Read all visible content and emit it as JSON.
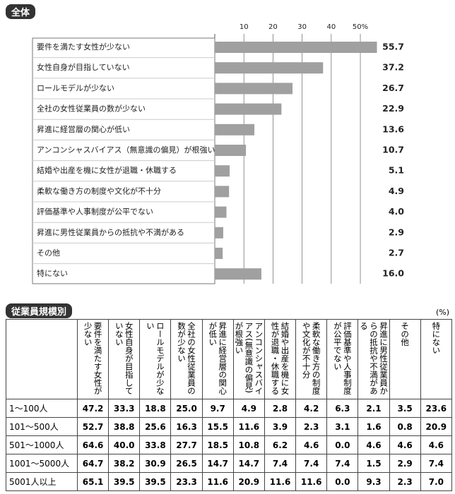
{
  "chart_data": {
    "type": "bar",
    "orientation": "horizontal",
    "title": "全体",
    "categories": [
      "要件を満たす女性が少ない",
      "女性自身が目指していない",
      "ロールモデルが少ない",
      "全社の女性従業員の数が少ない",
      "昇進に経営層の関心が低い",
      "アンコンシャスバイアス（無意識の偏見）が根強い",
      "結婚や出産を機に女性が退職・休職する",
      "柔軟な働き方の制度や文化が不十分",
      "評価基準や人事制度が公平でない",
      "昇進に男性従業員からの抵抗や不満がある",
      "その他",
      "特にない"
    ],
    "values": [
      55.7,
      37.2,
      26.7,
      22.9,
      13.6,
      10.7,
      5.1,
      4.9,
      4.0,
      2.9,
      2.7,
      16.0
    ],
    "value_labels": [
      "55.7",
      "37.2",
      "26.7",
      "22.9",
      "13.6",
      "10.7",
      "5.1",
      "4.9",
      "4.0",
      "2.9",
      "2.7",
      "16.0"
    ],
    "color": "#a0a0a0",
    "xlim": [
      0,
      58
    ],
    "xticks": [
      10,
      20,
      30,
      40,
      {
        "value": 50,
        "label": "50%"
      }
    ],
    "grid": true
  },
  "table": {
    "title": "従業員規模別",
    "unit": "(%)",
    "columns": [
      "",
      "要件を満たす女性が少ない",
      "女性自身が目指していない",
      "ロールモデルが少ない",
      "全社の女性従業員の数が少ない",
      "昇進に経営層の関心が低い",
      "アンコンシャスバイアス(無意識の偏見)が根強い",
      "結婚や出産を機に女性が退職・休職する",
      "柔軟な働き方の制度や文化が不十分",
      "評価基準や人事制度が公平でない",
      "昇進に男性従業員からの抵抗や不満がある",
      "その他",
      "特にない"
    ],
    "rows": [
      [
        "1～100人",
        "47.2",
        "33.3",
        "18.8",
        "25.0",
        "9.7",
        "4.9",
        "2.8",
        "4.2",
        "6.3",
        "2.1",
        "3.5",
        "23.6"
      ],
      [
        "101～500人",
        "52.7",
        "38.8",
        "25.6",
        "16.3",
        "15.5",
        "11.6",
        "3.9",
        "2.3",
        "3.1",
        "1.6",
        "0.8",
        "20.9"
      ],
      [
        "501～1000人",
        "64.6",
        "40.0",
        "33.8",
        "27.7",
        "18.5",
        "10.8",
        "6.2",
        "4.6",
        "0.0",
        "4.6",
        "4.6",
        "4.6"
      ],
      [
        "1001～5000人",
        "64.7",
        "38.2",
        "30.9",
        "26.5",
        "14.7",
        "14.7",
        "7.4",
        "7.4",
        "7.4",
        "1.5",
        "2.9",
        "7.4"
      ],
      [
        "5001人以上",
        "65.1",
        "39.5",
        "39.5",
        "23.3",
        "11.6",
        "20.9",
        "11.6",
        "11.6",
        "0.0",
        "9.3",
        "2.3",
        "7.0"
      ]
    ]
  }
}
